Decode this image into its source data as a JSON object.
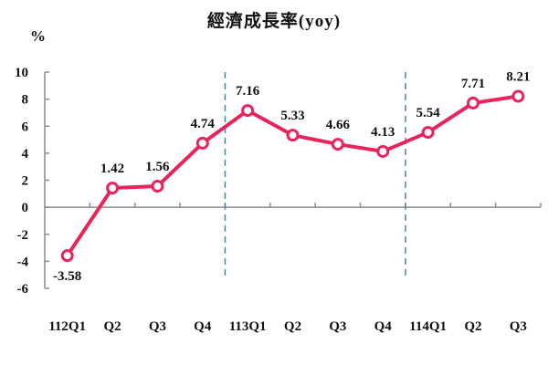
{
  "chart_data": {
    "type": "line",
    "title": "經濟成長率(yoy)",
    "ylabel": "%",
    "xlabel": "",
    "ylim": [
      -6,
      10
    ],
    "yticks": [
      10,
      8,
      6,
      4,
      2,
      0,
      -2,
      -4,
      -6
    ],
    "categories": [
      "112Q1",
      "Q2",
      "Q3",
      "Q4",
      "113Q1",
      "Q2",
      "Q3",
      "Q4",
      "114Q1",
      "Q2",
      "Q3"
    ],
    "series": [
      {
        "name": "經濟成長率",
        "values": [
          -3.58,
          1.42,
          1.56,
          4.74,
          7.16,
          5.33,
          4.66,
          4.13,
          5.54,
          7.71,
          8.21
        ],
        "color": "#e8245a"
      }
    ],
    "data_labels": [
      "-3.58",
      "1.42",
      "1.56",
      "4.74",
      "7.16",
      "5.33",
      "4.66",
      "4.13",
      "5.54",
      "7.71",
      "8.21"
    ],
    "year_separators_after_index": [
      3,
      7
    ],
    "separator_color": "#4a7fc0",
    "grid": false,
    "legend": "none"
  }
}
